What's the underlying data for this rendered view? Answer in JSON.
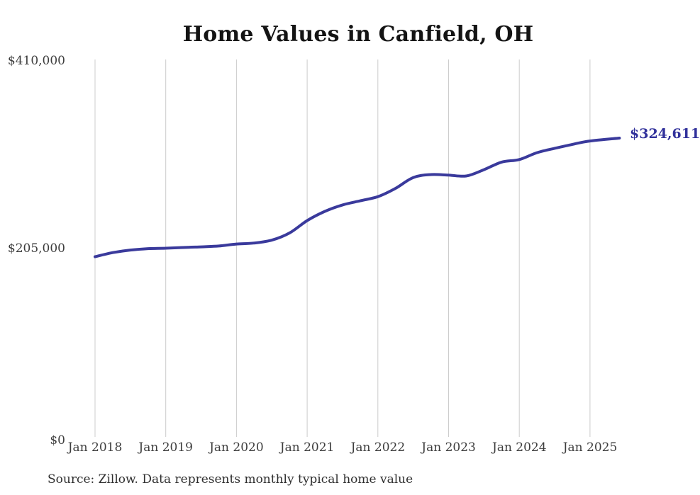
{
  "source_note": "Source: Zillow. Data represents monthly typical home value",
  "chart_data": {
    "type": "line",
    "title": "Home Values in Canfield, OH",
    "xlabel": "",
    "ylabel": "",
    "ylim": [
      0,
      410000
    ],
    "grid": "vertical-only",
    "legend_position": "none",
    "x_tick_labels": [
      "Jan 2018",
      "Jan 2019",
      "Jan 2020",
      "Jan 2021",
      "Jan 2022",
      "Jan 2023",
      "Jan 2024",
      "Jan 2025"
    ],
    "y_tick_labels": [
      "$410,000",
      "$205,000",
      "$0"
    ],
    "end_label": "$324,611",
    "end_value": 324611,
    "colors": {
      "line": "#3a3a9c",
      "end_label": "#31319b",
      "grid": "#cccccc",
      "tick_text": "#3d3d3d",
      "title_text": "#141414"
    },
    "series": [
      {
        "name": "Monthly typical home value",
        "points": [
          {
            "month": "2018-01",
            "value": 195800
          },
          {
            "month": "2018-04",
            "value": 200200
          },
          {
            "month": "2018-07",
            "value": 203000
          },
          {
            "month": "2018-10",
            "value": 204500
          },
          {
            "month": "2019-01",
            "value": 205000
          },
          {
            "month": "2019-04",
            "value": 205800
          },
          {
            "month": "2019-07",
            "value": 206500
          },
          {
            "month": "2019-10",
            "value": 207400
          },
          {
            "month": "2020-01",
            "value": 209500
          },
          {
            "month": "2020-04",
            "value": 210600
          },
          {
            "month": "2020-07",
            "value": 213800
          },
          {
            "month": "2020-10",
            "value": 221500
          },
          {
            "month": "2021-01",
            "value": 235000
          },
          {
            "month": "2021-04",
            "value": 245000
          },
          {
            "month": "2021-07",
            "value": 252000
          },
          {
            "month": "2021-10",
            "value": 256500
          },
          {
            "month": "2022-01",
            "value": 261000
          },
          {
            "month": "2022-04",
            "value": 270000
          },
          {
            "month": "2022-07",
            "value": 281800
          },
          {
            "month": "2022-10",
            "value": 285000
          },
          {
            "month": "2023-01",
            "value": 284400
          },
          {
            "month": "2023-04",
            "value": 283500
          },
          {
            "month": "2023-07",
            "value": 290300
          },
          {
            "month": "2023-10",
            "value": 298500
          },
          {
            "month": "2024-01",
            "value": 301300
          },
          {
            "month": "2024-04",
            "value": 308800
          },
          {
            "month": "2024-07",
            "value": 313500
          },
          {
            "month": "2024-10",
            "value": 317800
          },
          {
            "month": "2025-01",
            "value": 321500
          },
          {
            "month": "2025-06",
            "value": 324611
          }
        ]
      }
    ]
  }
}
